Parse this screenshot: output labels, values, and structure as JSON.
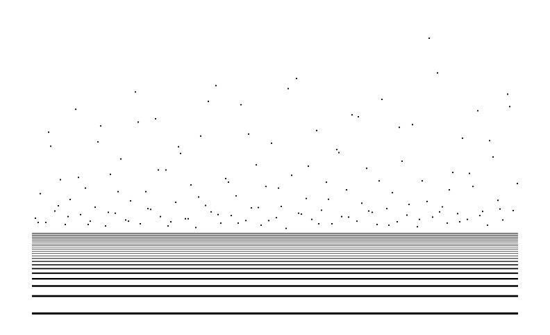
{
  "chart_data": {
    "type": "scatter",
    "color": "#000000",
    "log_y": true,
    "xlim": [
      0,
      700
    ],
    "ylim": [
      1,
      120000
    ],
    "levels": [
      1,
      2,
      3,
      4,
      5,
      6,
      7,
      8,
      9,
      10,
      11,
      12,
      13,
      14,
      15,
      16,
      17,
      18,
      19,
      20,
      21,
      22,
      23,
      24,
      25
    ],
    "x": [
      5,
      12,
      20,
      27,
      33,
      41,
      48,
      55,
      63,
      70,
      77,
      84,
      91,
      99,
      106,
      113,
      120,
      128,
      135,
      142,
      149,
      156,
      164,
      171,
      178,
      185,
      193,
      200,
      207,
      214,
      221,
      229,
      236,
      243,
      250,
      258,
      265,
      272,
      279,
      287,
      294,
      301,
      308,
      316,
      323,
      330,
      337,
      345,
      352,
      359,
      366,
      374,
      381,
      388,
      395,
      403,
      410,
      417,
      424,
      432,
      439,
      446,
      453,
      461,
      468,
      475,
      482,
      490,
      497,
      504,
      511,
      519,
      526,
      533,
      540,
      548,
      555,
      562,
      569,
      577,
      584,
      591,
      598,
      606,
      613,
      620,
      627,
      635,
      642,
      649,
      656,
      664,
      671,
      678,
      685,
      693,
      699,
      9,
      24,
      38,
      52,
      67,
      81,
      95,
      110,
      124,
      139,
      153,
      167,
      182,
      196,
      211,
      225,
      240,
      254,
      268,
      283,
      297,
      312,
      326,
      341,
      355,
      369,
      384,
      398,
      413,
      427,
      442,
      456,
      470,
      485,
      500,
      514,
      529,
      543,
      558,
      572,
      587,
      601,
      616,
      630,
      645,
      659,
      674,
      688
    ],
    "y": [
      45,
      120,
      38,
      800,
      60,
      210,
      35,
      95,
      3500,
      52,
      150,
      40,
      70,
      1800,
      33,
      260,
      55,
      480,
      42,
      90,
      7000,
      36,
      130,
      64,
      2400,
      48,
      310,
      39,
      85,
      600,
      44,
      170,
      31,
      1200,
      75,
      58,
      9000,
      37,
      220,
      50,
      110,
      4200,
      41,
      68,
      380,
      34,
      160,
      900,
      46,
      72,
      30,
      250,
      12000,
      53,
      99,
      43,
      1500,
      62,
      190,
      36,
      700,
      48,
      140,
      2800,
      40,
      82,
      330,
      57,
      35,
      5200,
      66,
      125,
      39,
      440,
      51,
      1900,
      32,
      200,
      88,
      47,
      15000,
      71,
      37,
      280,
      54,
      1100,
      43,
      160,
      3300,
      59,
      34,
      520,
      92,
      42,
      6400,
      61,
      180,
      38,
      1400,
      74,
      48,
      230,
      35,
      950,
      57,
      130,
      40,
      2100,
      66,
      310,
      33,
      780,
      44,
      105,
      4800,
      52,
      190,
      37,
      1300,
      69,
      41,
      150,
      8000,
      55,
      360,
      36,
      96,
      620,
      47,
      2600,
      60,
      200,
      34,
      1700,
      78,
      43,
      60000,
      58,
      140,
      39,
      270,
      50,
      1000,
      65,
      3900
    ]
  }
}
